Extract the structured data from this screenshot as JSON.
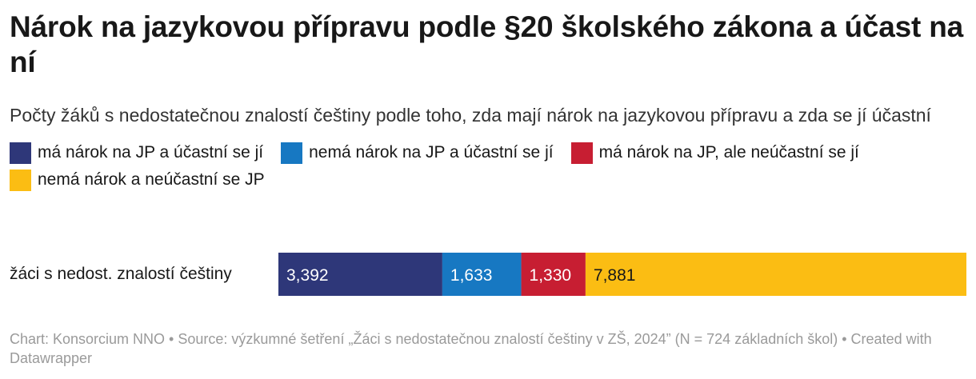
{
  "header": {
    "title": "Nárok na jazykovou přípravu podle §20 školského zákona a účast na ní",
    "subtitle": "Počty žáků s nedostatečnou znalostí češtiny podle toho, zda mají nárok na jazykovou přípravu a zda se jí účastní"
  },
  "chart_data": {
    "type": "bar",
    "orientation": "horizontal",
    "stacked": true,
    "title": "Nárok na jazykovou přípravu podle §20 školského zákona a účast na ní",
    "subtitle": "Počty žáků s nedostatečnou znalostí češtiny podle toho, zda mají nárok na jazykovou přípravu a zda se jí účastní",
    "categories": [
      "žáci s nedost. znalostí češtiny"
    ],
    "series": [
      {
        "name": "má nárok na JP a účastní se jí",
        "values": [
          3392
        ],
        "labels": [
          "3,392"
        ],
        "color": "#2e3779"
      },
      {
        "name": "nemá nárok na JP a účastní se jí",
        "values": [
          1633
        ],
        "labels": [
          "1,633"
        ],
        "color": "#1778c2"
      },
      {
        "name": "má nárok na JP, ale neúčastní se jí",
        "values": [
          1330
        ],
        "labels": [
          "1,330"
        ],
        "color": "#c71e32"
      },
      {
        "name": "nemá nárok a neúčastní se JP",
        "values": [
          7881
        ],
        "labels": [
          "7,881"
        ],
        "color": "#fbbd13"
      }
    ],
    "legend_position": "top",
    "grid": false
  },
  "footer": {
    "text": "Chart: Konsorcium NNO • Source: výzkumné šetření „Žáci s nedostatečnou znalostí češtiny v ZŠ, 2024” (N = 724 základních škol) • Created with Datawrapper"
  }
}
